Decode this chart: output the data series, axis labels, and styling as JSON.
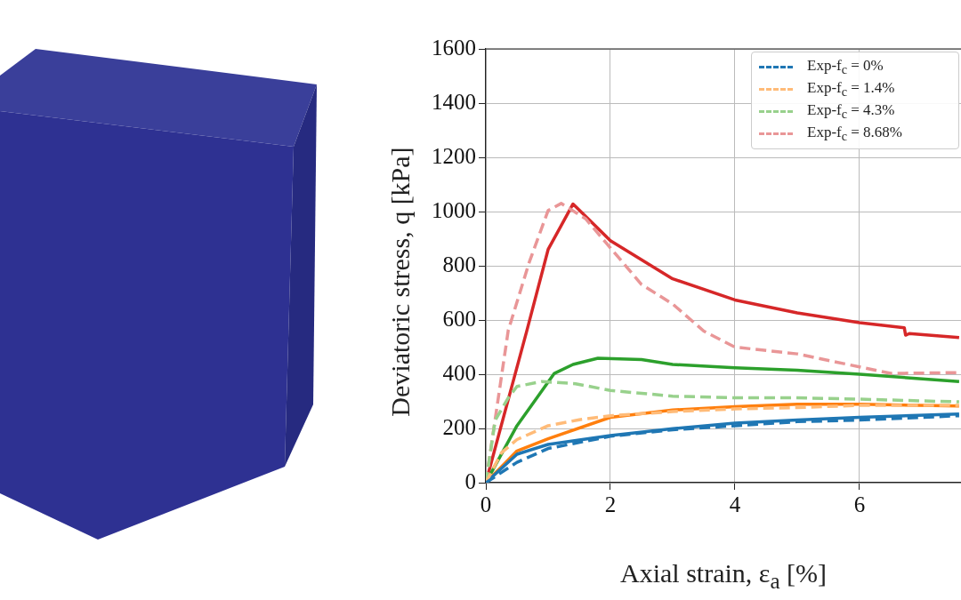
{
  "chart_data": {
    "type": "line",
    "xlabel": "Axial strain, ε$_{a}$ [%]",
    "ylabel": "Deviatoric stress, q [kPa]",
    "xlim": [
      0,
      7.63
    ],
    "xticks": [
      0,
      2,
      4,
      6
    ],
    "ylim": [
      0,
      1600
    ],
    "yticks": [
      0,
      200,
      400,
      600,
      800,
      1000,
      1200,
      1400,
      1600
    ],
    "grid": true,
    "legend": "top right",
    "marker": "none",
    "series": [
      {
        "name": "Exp-f$_{c}$ = 0%",
        "color": "#1f77b4",
        "line_style": "dashed",
        "x": [
          0,
          0.5,
          1,
          2,
          3,
          4,
          5,
          6,
          7.6
        ],
        "values": [
          0,
          75,
          126,
          171,
          195,
          210,
          225,
          231,
          247
        ]
      },
      {
        "name": "Exp-f$_{c}$ = 1.4%",
        "color": "#ffbb78",
        "line_style": "dashed",
        "x": [
          0,
          0.25,
          0.5,
          1,
          1.5,
          2,
          3,
          4,
          5,
          6,
          7.6
        ],
        "values": [
          0,
          110,
          159,
          210,
          232,
          247,
          262,
          272,
          277,
          285,
          285
        ]
      },
      {
        "name": "Exp-f$_{c}$ = 4.3%",
        "color": "#98d18c",
        "line_style": "dashed",
        "x": [
          0,
          0.15,
          0.36,
          0.5,
          0.9,
          1.44,
          2,
          3,
          4,
          5,
          6,
          7.6
        ],
        "values": [
          0,
          230,
          313,
          355,
          373,
          365,
          340,
          319,
          313,
          313,
          308,
          298
        ]
      },
      {
        "name": "Exp-f$_{c}$ = 8.68%",
        "color": "#e99697",
        "line_style": "dashed",
        "x": [
          0,
          0.36,
          0.7,
          1,
          1.21,
          1.6,
          2,
          2.5,
          3,
          3.5,
          4,
          5,
          6,
          6.5,
          7.6
        ],
        "values": [
          0,
          562,
          815,
          1004,
          1030,
          974,
          866,
          731,
          659,
          559,
          500,
          475,
          427,
          403,
          406
        ]
      },
      {
        "color": "#1f77b4",
        "line_style": "solid",
        "x": [
          0,
          0.5,
          1,
          2,
          3,
          4,
          5,
          6,
          7.6
        ],
        "values": [
          0,
          105,
          141,
          174,
          199,
          220,
          231,
          241,
          253
        ]
      },
      {
        "color": "#ff7f0e",
        "line_style": "solid",
        "x": [
          0,
          0.5,
          1,
          2,
          3,
          4,
          5,
          6,
          7.6
        ],
        "values": [
          0,
          117,
          162,
          241,
          268,
          280,
          289,
          289,
          283
        ]
      },
      {
        "color": "#2ca02c",
        "line_style": "solid",
        "x": [
          0,
          0.5,
          1.1,
          1.4,
          1.8,
          2.5,
          3,
          4,
          5,
          6,
          7.6
        ],
        "values": [
          0,
          210,
          403,
          436,
          459,
          454,
          436,
          424,
          415,
          400,
          373
        ]
      },
      {
        "color": "#d62728",
        "line_style": "solid",
        "x": [
          0,
          0.66,
          1,
          1.4,
          2,
          3,
          4,
          5,
          6,
          6.72,
          6.74,
          6.8,
          7.6
        ],
        "values": [
          0,
          562,
          860,
          1028,
          893,
          752,
          674,
          626,
          590,
          571,
          544,
          550,
          535
        ]
      }
    ]
  }
}
